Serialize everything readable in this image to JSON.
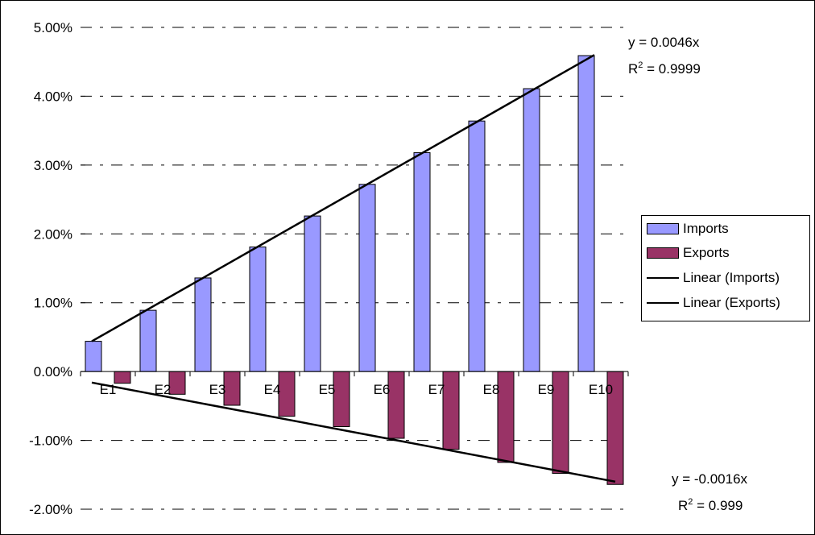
{
  "chart_data": {
    "type": "bar",
    "categories": [
      "E1",
      "E2",
      "E3",
      "E4",
      "E5",
      "E6",
      "E7",
      "E8",
      "E9",
      "E10"
    ],
    "series": [
      {
        "name": "Imports",
        "values": [
          0.0044,
          0.0089,
          0.0136,
          0.0181,
          0.0226,
          0.0272,
          0.0318,
          0.0364,
          0.0411,
          0.0459
        ],
        "color": "#9999ff"
      },
      {
        "name": "Exports",
        "values": [
          -0.0017,
          -0.0033,
          -0.0049,
          -0.0065,
          -0.008,
          -0.0097,
          -0.0113,
          -0.0132,
          -0.0148,
          -0.0164
        ],
        "color": "#993366"
      }
    ],
    "trendlines": [
      {
        "name": "Linear (Imports)",
        "equation": "y = 0.0046x",
        "r2_label": "R",
        "r2_sup": "2",
        "r2_value": " = 0.9999",
        "slope": 0.0046
      },
      {
        "name": "Linear (Exports)",
        "equation": "y = -0.0016x",
        "r2_label": "R",
        "r2_sup": "2",
        "r2_value": " = 0.999",
        "slope": -0.0016
      }
    ],
    "y_ticks": [
      "5.00%",
      "4.00%",
      "3.00%",
      "2.00%",
      "1.00%",
      "0.00%",
      "-1.00%",
      "-2.00%"
    ],
    "ylim": [
      -0.02,
      0.05
    ],
    "grid": "dashed horizontal",
    "legend_position": "right",
    "title": "",
    "xlabel": "",
    "ylabel": ""
  },
  "legend": {
    "items": [
      "Imports",
      "Exports",
      "Linear (Imports)",
      "Linear (Exports)"
    ]
  }
}
